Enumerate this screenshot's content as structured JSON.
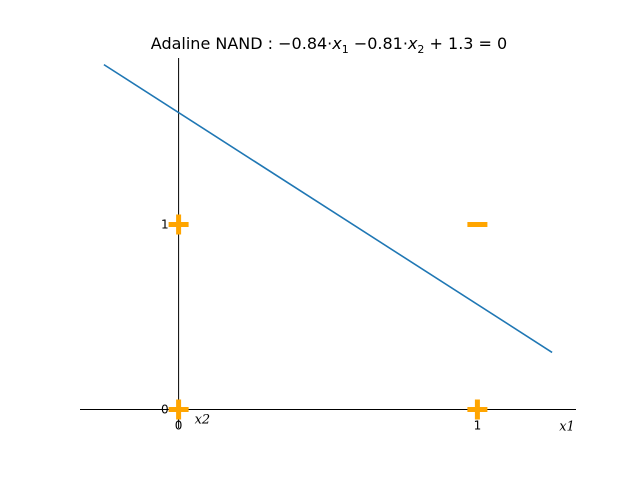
{
  "chart_data": {
    "type": "scatter",
    "title_prefix": "Adaline NAND : ",
    "equation": {
      "w1": "−0.84",
      "x1": "x",
      "x1_sub": "1",
      "w2": "−0.81",
      "x2": "x",
      "x2_sub": "2",
      "b": "+ 1.3 = 0"
    },
    "xlabel": "x1",
    "ylabel": "x2",
    "x_ticks": [
      "0",
      "1"
    ],
    "y_ticks": [
      "0",
      "1"
    ],
    "xlim": [
      -0.33,
      1.33
    ],
    "ylim": [
      -0.1,
      1.9
    ],
    "points": [
      {
        "x": 0,
        "y": 0,
        "marker": "plus"
      },
      {
        "x": 0,
        "y": 1,
        "marker": "plus"
      },
      {
        "x": 1,
        "y": 0,
        "marker": "plus"
      },
      {
        "x": 1,
        "y": 1,
        "marker": "minus"
      }
    ],
    "decision_line": {
      "w1": -0.84,
      "w2": -0.81,
      "b": 1.3,
      "x_range": [
        -0.25,
        1.25
      ]
    },
    "colors": {
      "line": "#1f77b4",
      "marker": "#ffa500",
      "axis": "#000000"
    },
    "grid": false
  }
}
